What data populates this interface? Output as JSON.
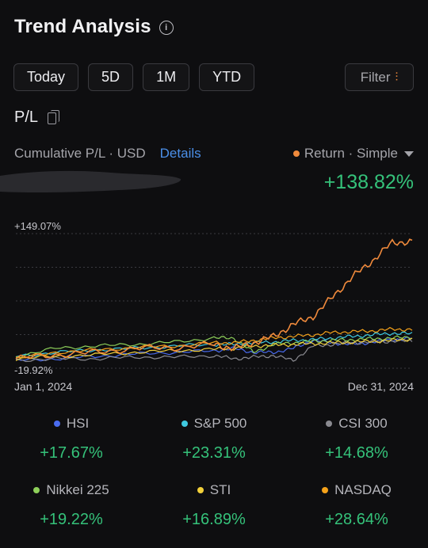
{
  "header": {
    "title": "Trend Analysis",
    "info_icon": "info-circle-icon"
  },
  "periods": [
    "Today",
    "5D",
    "1M",
    "YTD"
  ],
  "filter": {
    "label": "Filter",
    "icon": "sliders-icon"
  },
  "pl": {
    "label": "P/L",
    "copy_icon": "copy-icon"
  },
  "cumulative": {
    "label": "Cumulative P/L · USD",
    "details": "Details"
  },
  "return_selector": {
    "label": "Return · Simple",
    "dot_color": "#f08a3c"
  },
  "return_value": "+138.82%",
  "colors": {
    "positive": "#35c27a",
    "accent": "#f08a3c",
    "link": "#4b8fe8",
    "background": "#0e0e10"
  },
  "chart_data": {
    "type": "line",
    "ymax_label": "+149.07%",
    "ymin_label": "-19.92%",
    "ylim": [
      -19.92,
      149.07
    ],
    "x_start_label": "Jan 1, 2024",
    "x_end_label": "Dec 31, 2024",
    "x": [
      0,
      0.1,
      0.2,
      0.3,
      0.4,
      0.5,
      0.55,
      0.6,
      0.65,
      0.7,
      0.75,
      0.8,
      0.85,
      0.9,
      0.95,
      1.0
    ],
    "series": [
      {
        "name": "Return",
        "color": "#f08a3c",
        "values": [
          -8,
          -3,
          0,
          5,
          6,
          10,
          5,
          12,
          20,
          35,
          45,
          70,
          95,
          115,
          138,
          138.82
        ]
      },
      {
        "name": "HSI",
        "color": "#4a6cf0",
        "values": [
          -10,
          -8,
          -5,
          -2,
          0,
          2,
          5,
          0,
          0,
          5,
          15,
          12,
          10,
          13,
          16,
          17.67
        ]
      },
      {
        "name": "S&P 500",
        "color": "#3fc9e0",
        "values": [
          -5,
          0,
          3,
          5,
          8,
          10,
          10,
          12,
          13,
          15,
          16,
          18,
          20,
          22,
          24,
          23.31
        ]
      },
      {
        "name": "CSI 300",
        "color": "#8a8a90",
        "values": [
          -10,
          -8,
          -8,
          -6,
          -6,
          -4,
          -8,
          -6,
          -4,
          -10,
          8,
          10,
          12,
          13,
          14,
          14.68
        ]
      },
      {
        "name": "Nikkei 225",
        "color": "#8ed05a",
        "values": [
          -5,
          5,
          8,
          10,
          13,
          18,
          18,
          0,
          10,
          12,
          14,
          15,
          16,
          17,
          18,
          19.22
        ]
      },
      {
        "name": "STI",
        "color": "#f2d03a",
        "values": [
          -8,
          -5,
          -3,
          0,
          2,
          4,
          5,
          8,
          9,
          10,
          11,
          12,
          13,
          14,
          15,
          16.89
        ]
      },
      {
        "name": "NASDAQ",
        "color": "#f5a21a",
        "values": [
          -8,
          0,
          3,
          6,
          8,
          12,
          12,
          15,
          18,
          20,
          22,
          25,
          26,
          27,
          29,
          28.64
        ]
      }
    ]
  },
  "legend": [
    {
      "name": "HSI",
      "color": "#4a6cf0",
      "value": "+17.67%"
    },
    {
      "name": "S&P 500",
      "color": "#3fc9e0",
      "value": "+23.31%"
    },
    {
      "name": "CSI 300",
      "color": "#8a8a90",
      "value": "+14.68%"
    },
    {
      "name": "Nikkei 225",
      "color": "#8ed05a",
      "value": "+19.22%"
    },
    {
      "name": "STI",
      "color": "#f2d03a",
      "value": "+16.89%"
    },
    {
      "name": "NASDAQ",
      "color": "#f5a21a",
      "value": "+28.64%"
    }
  ]
}
